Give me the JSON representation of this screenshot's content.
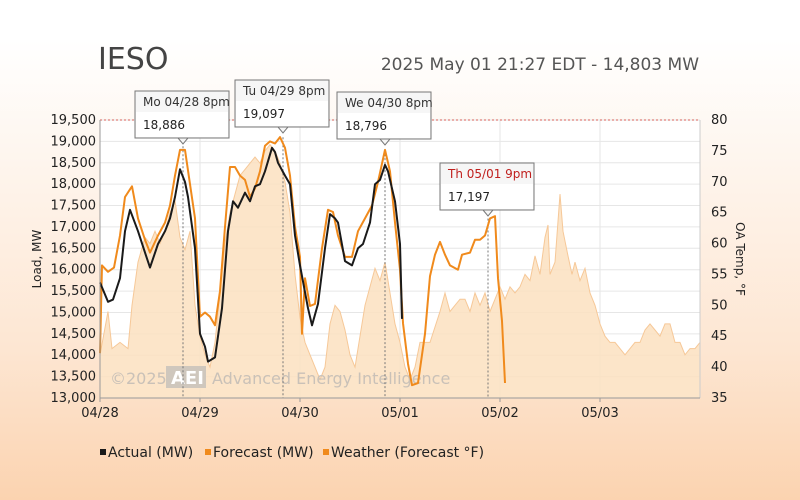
{
  "header": {
    "title": "IESO",
    "status": "2025 May 01 21:27 EDT - 14,803 MW"
  },
  "watermark": {
    "copyright": "©2025",
    "logo": "AEI",
    "company": "Advanced Energy Intelligence"
  },
  "colors": {
    "actual": "#1a1a1a",
    "forecast": "#f08a1c",
    "weather_fill": "#fbe0c0",
    "weather_line": "#f6c898",
    "grid": "#e6e6e6",
    "top_border": "#d8625a"
  },
  "chart_data": {
    "type": "line",
    "title": "IESO",
    "x_ticks": [
      "04/28",
      "04/29",
      "04/30",
      "05/01",
      "05/02",
      "05/03"
    ],
    "x_range": [
      0,
      6
    ],
    "ylabel": "Load, MW",
    "ylim": [
      13000,
      19500
    ],
    "y_ticks": [
      "13,000",
      "13,500",
      "14,000",
      "14,500",
      "15,000",
      "15,500",
      "16,000",
      "16,500",
      "17,000",
      "17,500",
      "18,000",
      "18,500",
      "19,000",
      "19,500"
    ],
    "y2label": "OA Temp, °F",
    "y2lim": [
      35,
      80
    ],
    "y2_ticks": [
      "35",
      "40",
      "45",
      "50",
      "55",
      "60",
      "65",
      "70",
      "75",
      "80"
    ],
    "grid": true,
    "legend_position": "bottom",
    "series": [
      {
        "name": "Actual (MW)",
        "points": [
          [
            0.0,
            15700
          ],
          [
            0.08,
            15250
          ],
          [
            0.13,
            15300
          ],
          [
            0.2,
            15800
          ],
          [
            0.25,
            16900
          ],
          [
            0.3,
            17400
          ],
          [
            0.38,
            16900
          ],
          [
            0.45,
            16400
          ],
          [
            0.5,
            16050
          ],
          [
            0.58,
            16600
          ],
          [
            0.65,
            16900
          ],
          [
            0.7,
            17200
          ],
          [
            0.75,
            17700
          ],
          [
            0.8,
            18350
          ],
          [
            0.85,
            18050
          ],
          [
            0.88,
            17700
          ],
          [
            0.95,
            16500
          ],
          [
            1.0,
            14500
          ],
          [
            1.05,
            14200
          ],
          [
            1.08,
            13850
          ],
          [
            1.15,
            13950
          ],
          [
            1.22,
            15100
          ],
          [
            1.28,
            16900
          ],
          [
            1.33,
            17600
          ],
          [
            1.38,
            17450
          ],
          [
            1.45,
            17800
          ],
          [
            1.5,
            17600
          ],
          [
            1.55,
            17950
          ],
          [
            1.6,
            18000
          ],
          [
            1.65,
            18300
          ],
          [
            1.72,
            18850
          ],
          [
            1.75,
            18750
          ],
          [
            1.78,
            18500
          ],
          [
            1.85,
            18200
          ],
          [
            1.9,
            18000
          ],
          [
            1.95,
            16800
          ],
          [
            2.0,
            16100
          ],
          [
            2.08,
            15100
          ],
          [
            2.12,
            14700
          ],
          [
            2.18,
            15200
          ],
          [
            2.25,
            16500
          ],
          [
            2.3,
            17300
          ],
          [
            2.35,
            17200
          ],
          [
            2.38,
            17100
          ],
          [
            2.45,
            16200
          ],
          [
            2.52,
            16100
          ],
          [
            2.58,
            16500
          ],
          [
            2.63,
            16600
          ],
          [
            2.7,
            17100
          ],
          [
            2.75,
            18000
          ],
          [
            2.8,
            18100
          ],
          [
            2.85,
            18450
          ],
          [
            2.88,
            18300
          ],
          [
            2.95,
            17600
          ],
          [
            3.0,
            16600
          ],
          [
            3.02,
            14850
          ]
        ]
      },
      {
        "name": "Forecast (MW)",
        "points": [
          [
            0.0,
            14050
          ],
          [
            0.02,
            16100
          ],
          [
            0.08,
            15950
          ],
          [
            0.14,
            16050
          ],
          [
            0.2,
            16800
          ],
          [
            0.25,
            17700
          ],
          [
            0.32,
            17950
          ],
          [
            0.38,
            17200
          ],
          [
            0.45,
            16700
          ],
          [
            0.5,
            16400
          ],
          [
            0.58,
            16800
          ],
          [
            0.65,
            17100
          ],
          [
            0.7,
            17500
          ],
          [
            0.75,
            18200
          ],
          [
            0.8,
            18800
          ],
          [
            0.85,
            18800
          ],
          [
            0.9,
            18000
          ],
          [
            0.95,
            17200
          ],
          [
            1.0,
            14900
          ],
          [
            1.05,
            15000
          ],
          [
            1.1,
            14900
          ],
          [
            1.15,
            14700
          ],
          [
            1.2,
            15500
          ],
          [
            1.25,
            17000
          ],
          [
            1.3,
            18400
          ],
          [
            1.35,
            18400
          ],
          [
            1.4,
            18200
          ],
          [
            1.45,
            18100
          ],
          [
            1.5,
            17700
          ],
          [
            1.55,
            17900
          ],
          [
            1.6,
            18300
          ],
          [
            1.65,
            18900
          ],
          [
            1.7,
            19000
          ],
          [
            1.75,
            18950
          ],
          [
            1.8,
            19100
          ],
          [
            1.85,
            18850
          ],
          [
            1.9,
            18200
          ],
          [
            1.95,
            17000
          ],
          [
            2.0,
            16300
          ],
          [
            2.02,
            14500
          ],
          [
            2.05,
            15800
          ],
          [
            2.1,
            15150
          ],
          [
            2.15,
            15200
          ],
          [
            2.22,
            16500
          ],
          [
            2.28,
            17400
          ],
          [
            2.33,
            17350
          ],
          [
            2.38,
            16800
          ],
          [
            2.45,
            16300
          ],
          [
            2.52,
            16300
          ],
          [
            2.58,
            16900
          ],
          [
            2.65,
            17200
          ],
          [
            2.72,
            17500
          ],
          [
            2.78,
            18050
          ],
          [
            2.85,
            18800
          ],
          [
            2.9,
            18300
          ],
          [
            2.95,
            17100
          ],
          [
            3.0,
            16000
          ],
          [
            3.03,
            14750
          ],
          [
            3.08,
            13800
          ],
          [
            3.12,
            13300
          ],
          [
            3.18,
            13350
          ],
          [
            3.25,
            14500
          ],
          [
            3.3,
            15850
          ],
          [
            3.35,
            16350
          ],
          [
            3.4,
            16650
          ],
          [
            3.45,
            16350
          ],
          [
            3.5,
            16100
          ],
          [
            3.58,
            16000
          ],
          [
            3.62,
            16350
          ],
          [
            3.7,
            16400
          ],
          [
            3.75,
            16700
          ],
          [
            3.8,
            16700
          ],
          [
            3.85,
            16800
          ],
          [
            3.9,
            17200
          ],
          [
            3.95,
            17250
          ],
          [
            3.98,
            15800
          ],
          [
            4.02,
            14800
          ],
          [
            4.05,
            13350
          ]
        ]
      },
      {
        "name": "Weather (Forecast °F)",
        "points": [
          [
            0.0,
            42
          ],
          [
            0.08,
            49
          ],
          [
            0.12,
            43
          ],
          [
            0.2,
            44
          ],
          [
            0.28,
            43
          ],
          [
            0.32,
            50
          ],
          [
            0.38,
            57
          ],
          [
            0.45,
            61
          ],
          [
            0.5,
            60
          ],
          [
            0.55,
            62
          ],
          [
            0.6,
            60
          ],
          [
            0.65,
            62
          ],
          [
            0.7,
            65
          ],
          [
            0.75,
            67
          ],
          [
            0.8,
            61
          ],
          [
            0.85,
            59
          ],
          [
            0.9,
            62
          ],
          [
            0.95,
            50
          ],
          [
            1.0,
            45
          ],
          [
            1.05,
            42
          ],
          [
            1.1,
            40
          ],
          [
            1.15,
            44
          ],
          [
            1.2,
            52
          ],
          [
            1.25,
            60
          ],
          [
            1.3,
            65
          ],
          [
            1.35,
            68
          ],
          [
            1.4,
            71
          ],
          [
            1.45,
            72
          ],
          [
            1.5,
            73
          ],
          [
            1.55,
            74
          ],
          [
            1.6,
            73
          ],
          [
            1.65,
            75
          ],
          [
            1.7,
            76
          ],
          [
            1.75,
            75
          ],
          [
            1.8,
            73
          ],
          [
            1.85,
            70
          ],
          [
            1.9,
            65
          ],
          [
            1.95,
            55
          ],
          [
            2.0,
            48
          ],
          [
            2.05,
            44
          ],
          [
            2.1,
            42
          ],
          [
            2.15,
            40
          ],
          [
            2.2,
            38
          ],
          [
            2.25,
            40
          ],
          [
            2.3,
            47
          ],
          [
            2.35,
            50
          ],
          [
            2.4,
            49
          ],
          [
            2.45,
            46
          ],
          [
            2.5,
            42
          ],
          [
            2.55,
            40
          ],
          [
            2.6,
            45
          ],
          [
            2.65,
            50
          ],
          [
            2.7,
            53
          ],
          [
            2.75,
            56
          ],
          [
            2.8,
            54
          ],
          [
            2.85,
            57
          ],
          [
            2.9,
            52
          ],
          [
            2.95,
            47
          ],
          [
            3.0,
            44
          ],
          [
            3.05,
            40
          ],
          [
            3.1,
            38
          ],
          [
            3.15,
            40
          ],
          [
            3.2,
            44
          ],
          [
            3.3,
            44
          ],
          [
            3.4,
            49
          ],
          [
            3.45,
            52
          ],
          [
            3.5,
            49
          ],
          [
            3.55,
            50
          ],
          [
            3.6,
            51
          ],
          [
            3.65,
            51
          ],
          [
            3.7,
            49
          ],
          [
            3.75,
            52
          ],
          [
            3.8,
            50
          ],
          [
            3.85,
            52
          ],
          [
            3.9,
            49
          ],
          [
            3.95,
            51
          ],
          [
            4.0,
            53
          ],
          [
            4.05,
            51
          ],
          [
            4.1,
            53
          ],
          [
            4.15,
            52
          ],
          [
            4.2,
            53
          ],
          [
            4.25,
            55
          ],
          [
            4.3,
            54
          ],
          [
            4.35,
            58
          ],
          [
            4.4,
            55
          ],
          [
            4.45,
            61
          ],
          [
            4.48,
            63
          ],
          [
            4.5,
            55
          ],
          [
            4.55,
            57
          ],
          [
            4.6,
            68
          ],
          [
            4.63,
            62
          ],
          [
            4.68,
            58
          ],
          [
            4.72,
            55
          ],
          [
            4.75,
            57
          ],
          [
            4.8,
            54
          ],
          [
            4.85,
            56
          ],
          [
            4.9,
            52
          ],
          [
            4.95,
            50
          ],
          [
            5.0,
            47
          ],
          [
            5.05,
            45
          ],
          [
            5.1,
            44
          ],
          [
            5.15,
            44
          ],
          [
            5.2,
            43
          ],
          [
            5.25,
            42
          ],
          [
            5.3,
            43
          ],
          [
            5.35,
            44
          ],
          [
            5.4,
            44
          ],
          [
            5.45,
            46
          ],
          [
            5.5,
            47
          ],
          [
            5.55,
            46
          ],
          [
            5.6,
            45
          ],
          [
            5.65,
            47
          ],
          [
            5.7,
            47
          ],
          [
            5.75,
            44
          ],
          [
            5.8,
            44
          ],
          [
            5.85,
            42
          ],
          [
            5.9,
            43
          ],
          [
            5.95,
            43
          ],
          [
            6.0,
            44
          ]
        ]
      }
    ],
    "callouts": [
      {
        "label": "Mo 04/28 8pm",
        "value": "18,886",
        "x": 0.83,
        "y": 18886,
        "accent": false
      },
      {
        "label": "Tu 04/29 8pm",
        "value": "19,097",
        "x": 1.83,
        "y": 19097,
        "accent": false
      },
      {
        "label": "We 04/30 8pm",
        "value": "18,796",
        "x": 2.85,
        "y": 18796,
        "accent": false
      },
      {
        "label": "Th 05/01 9pm",
        "value": "17,197",
        "x": 3.88,
        "y": 17197,
        "accent": true
      }
    ]
  }
}
